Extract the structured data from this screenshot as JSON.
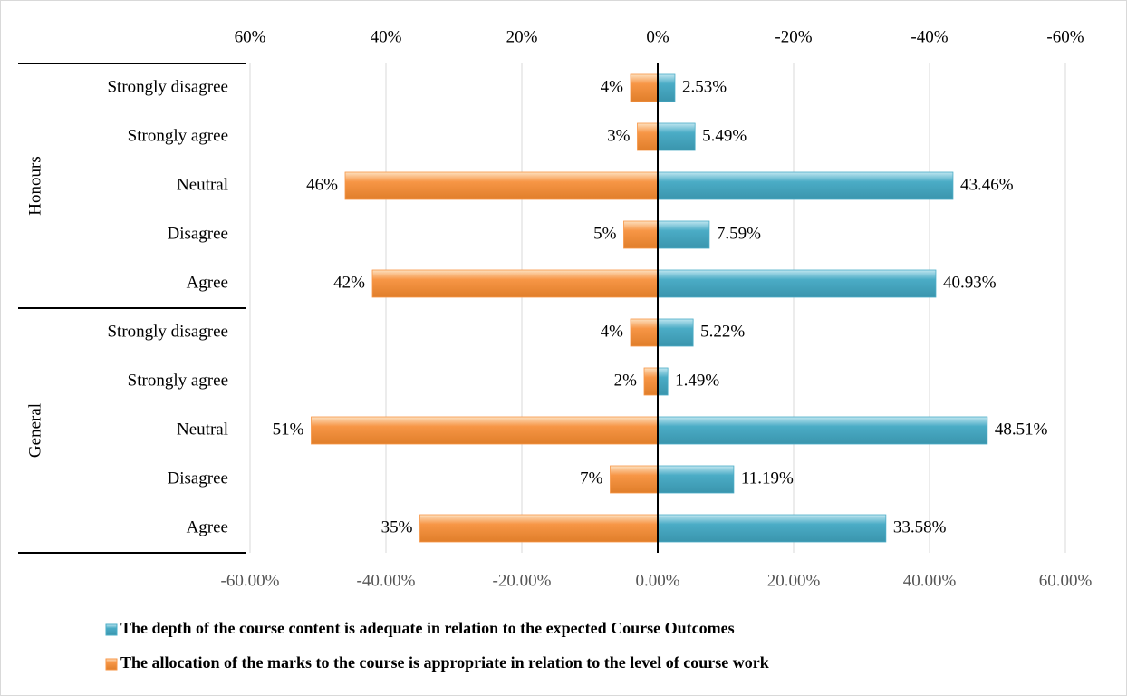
{
  "chart_data": {
    "type": "bar",
    "orientation": "horizontal",
    "groups": [
      {
        "name": "Honours",
        "categories": [
          "Strongly disagree",
          "Strongly agree",
          "Neutral",
          "Disagree",
          "Agree"
        ]
      },
      {
        "name": "General",
        "categories": [
          "Strongly disagree",
          "Strongly agree",
          "Neutral",
          "Disagree",
          "Agree"
        ]
      }
    ],
    "xlim": [
      -60,
      60
    ],
    "xticks": [
      {
        "value": -60,
        "label": "-60.00%"
      },
      {
        "value": -40,
        "label": "-40.00%"
      },
      {
        "value": -20,
        "label": "-20.00%"
      },
      {
        "value": 0,
        "label": "0.00%"
      },
      {
        "value": 20,
        "label": "20.00%"
      },
      {
        "value": 40,
        "label": "40.00%"
      },
      {
        "value": 60,
        "label": "60.00%"
      }
    ],
    "x2lim": [
      60,
      -60
    ],
    "x2ticks": [
      {
        "value": 60,
        "label": "60%"
      },
      {
        "value": 40,
        "label": "40%"
      },
      {
        "value": 20,
        "label": "20%"
      },
      {
        "value": 0,
        "label": "0%"
      },
      {
        "value": -20,
        "label": "-20%"
      },
      {
        "value": -40,
        "label": "-40%"
      },
      {
        "value": -60,
        "label": "-60%"
      }
    ],
    "grid": true,
    "series": [
      {
        "name": "The depth of the course content is adequate in relation to the expected Course Outcomes",
        "color": "#4bacc6",
        "axis": "x",
        "values": [
          2.53,
          5.49,
          43.46,
          7.59,
          40.93,
          5.22,
          1.49,
          48.51,
          11.19,
          33.58
        ],
        "value_labels": [
          "2.53%",
          "5.49%",
          "43.46%",
          "7.59%",
          "40.93%",
          "5.22%",
          "1.49%",
          "48.51%",
          "11.19%",
          "33.58%"
        ]
      },
      {
        "name": "The allocation of the marks to the course is appropriate in relation to the level of course work",
        "color": "#f79646",
        "axis": "x2",
        "values": [
          4,
          3,
          46,
          5,
          42,
          4,
          2,
          51,
          7,
          35
        ],
        "value_labels": [
          "4%",
          "3%",
          "46%",
          "5%",
          "42%",
          "4%",
          "2%",
          "51%",
          "7%",
          "35%"
        ]
      }
    ]
  }
}
